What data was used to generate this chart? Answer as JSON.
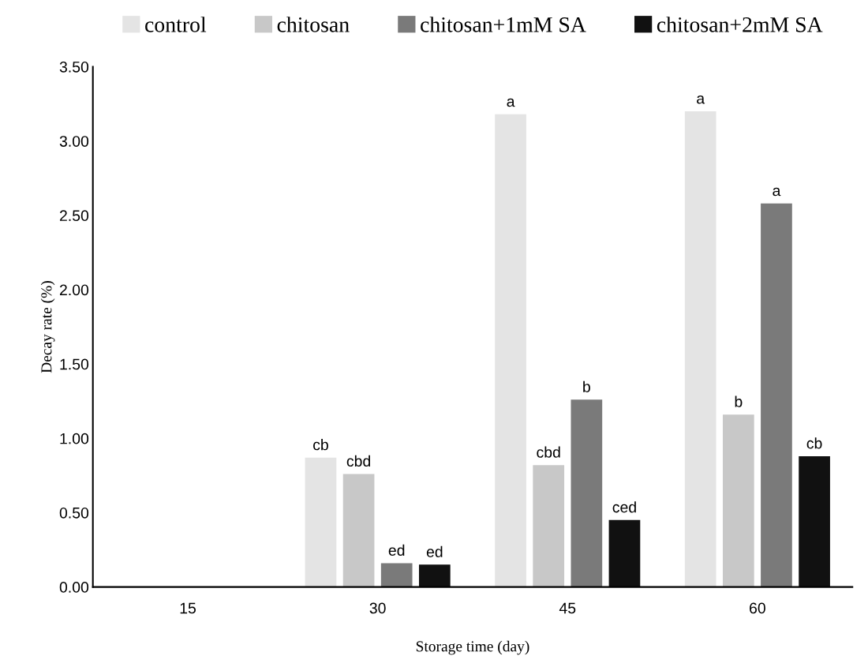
{
  "chart_data": {
    "type": "bar",
    "xlabel": "Storage time (day)",
    "ylabel": "Decay rate (%)",
    "categories": [
      "15",
      "30",
      "45",
      "60"
    ],
    "series": [
      {
        "name": "control",
        "color": "#e4e4e4",
        "values": [
          null,
          0.87,
          3.18,
          3.2
        ],
        "value_labels": [
          null,
          "cb",
          "a",
          "a"
        ]
      },
      {
        "name": "chitosan",
        "color": "#c8c8c8",
        "values": [
          null,
          0.76,
          0.82,
          1.16
        ],
        "value_labels": [
          null,
          "cbd",
          "cbd",
          "b"
        ]
      },
      {
        "name": "chitosan+1mM SA",
        "color": "#7a7a7a",
        "values": [
          null,
          0.16,
          1.26,
          2.58
        ],
        "value_labels": [
          null,
          "ed",
          "b",
          "a"
        ]
      },
      {
        "name": "chitosan+2mM SA",
        "color": "#111111",
        "values": [
          null,
          0.15,
          0.45,
          0.88
        ],
        "value_labels": [
          null,
          "ed",
          "ced",
          "cb"
        ]
      }
    ],
    "ylim": [
      0,
      3.5
    ],
    "yticks": [
      {
        "value": 0,
        "label": "0.00"
      },
      {
        "value": 0.5,
        "label": "0.50"
      },
      {
        "value": 1,
        "label": "1.00"
      },
      {
        "value": 1.5,
        "label": "1.50"
      },
      {
        "value": 2,
        "label": "2.00"
      },
      {
        "value": 2.5,
        "label": "2.50"
      },
      {
        "value": 3,
        "label": "3.00"
      },
      {
        "value": 3.5,
        "label": "3.50"
      }
    ],
    "legend": "top",
    "grid": false
  }
}
